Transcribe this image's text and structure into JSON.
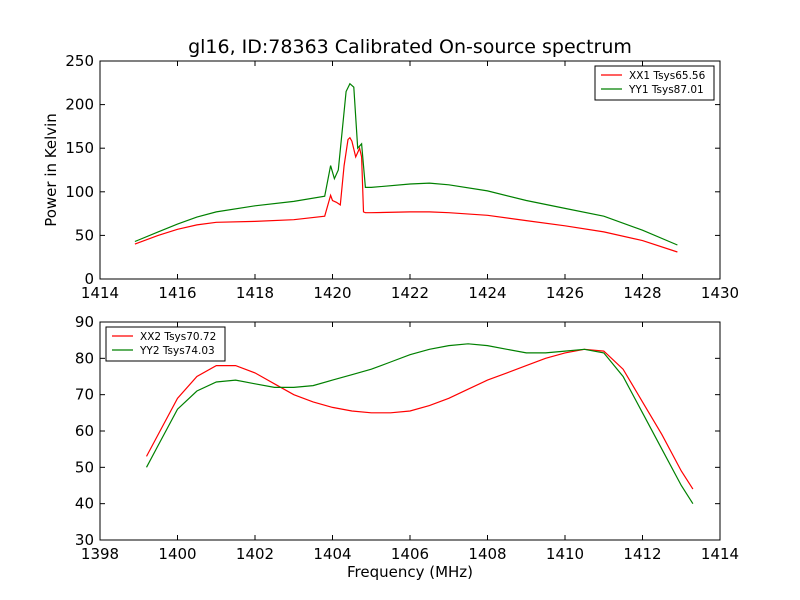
{
  "chart_data": [
    {
      "type": "line",
      "title": "gl16, ID:78363 Calibrated On-source spectrum",
      "xlabel": "",
      "ylabel": "Power in Kelvin",
      "xlim": [
        1414,
        1430
      ],
      "ylim": [
        0,
        250
      ],
      "xticks": [
        1414,
        1416,
        1418,
        1420,
        1422,
        1424,
        1426,
        1428,
        1430
      ],
      "yticks": [
        0,
        50,
        100,
        150,
        200,
        250
      ],
      "grid": false,
      "legend_position": "top-right",
      "series": [
        {
          "name": "XX1 Tsys65.56",
          "color": "#ff0000",
          "x": [
            1414.9,
            1415.5,
            1416,
            1416.5,
            1417,
            1418,
            1419,
            1419.8,
            1419.95,
            1420.0,
            1420.1,
            1420.2,
            1420.3,
            1420.4,
            1420.45,
            1420.5,
            1420.6,
            1420.7,
            1420.75,
            1420.8,
            1420.85,
            1421,
            1422,
            1422.5,
            1423,
            1424,
            1425,
            1426,
            1427,
            1428,
            1428.9
          ],
          "y": [
            40,
            50,
            57,
            62,
            65,
            66,
            68,
            72,
            96,
            90,
            88,
            85,
            130,
            160,
            162,
            158,
            140,
            150,
            140,
            77,
            76,
            76,
            77,
            77,
            76,
            73,
            67,
            61,
            54,
            44,
            31
          ]
        },
        {
          "name": "YY1 Tsys87.01",
          "color": "#008000",
          "x": [
            1414.9,
            1415.5,
            1416,
            1416.5,
            1417,
            1418,
            1419,
            1419.8,
            1419.95,
            1420.05,
            1420.15,
            1420.25,
            1420.35,
            1420.45,
            1420.55,
            1420.65,
            1420.75,
            1420.85,
            1421,
            1422,
            1422.5,
            1423,
            1424,
            1425,
            1426,
            1427,
            1428,
            1428.9
          ],
          "y": [
            43,
            54,
            63,
            71,
            77,
            84,
            89,
            95,
            130,
            115,
            125,
            170,
            215,
            224,
            220,
            150,
            155,
            105,
            105,
            109,
            110,
            108,
            101,
            90,
            81,
            72,
            56,
            39
          ]
        }
      ]
    },
    {
      "type": "line",
      "title": "",
      "xlabel": "Frequency (MHz)",
      "ylabel": "",
      "xlim": [
        1398,
        1414
      ],
      "ylim": [
        30,
        90
      ],
      "xticks": [
        1398,
        1400,
        1402,
        1404,
        1406,
        1408,
        1410,
        1412,
        1414
      ],
      "yticks": [
        30,
        40,
        50,
        60,
        70,
        80,
        90
      ],
      "grid": false,
      "legend_position": "top-left",
      "series": [
        {
          "name": "XX2 Tsys70.72",
          "color": "#ff0000",
          "x": [
            1399.2,
            1399.5,
            1400,
            1400.5,
            1401,
            1401.5,
            1402,
            1402.5,
            1403,
            1403.5,
            1404,
            1404.5,
            1405,
            1405.5,
            1406,
            1406.5,
            1407,
            1407.5,
            1408,
            1408.5,
            1409,
            1409.5,
            1410,
            1410.5,
            1411,
            1411.5,
            1412,
            1412.5,
            1413,
            1413.3
          ],
          "y": [
            53,
            59,
            69,
            75,
            78,
            78,
            76,
            73,
            70,
            68,
            66.5,
            65.5,
            65,
            65,
            65.5,
            67,
            69,
            71.5,
            74,
            76,
            78,
            80,
            81.5,
            82.5,
            82,
            77,
            68,
            59,
            49,
            44
          ]
        },
        {
          "name": "YY2 Tsys74.03",
          "color": "#008000",
          "x": [
            1399.2,
            1399.5,
            1400,
            1400.5,
            1401,
            1401.5,
            1402,
            1402.5,
            1403,
            1403.5,
            1404,
            1404.5,
            1405,
            1405.5,
            1406,
            1406.5,
            1407,
            1407.5,
            1408,
            1408.5,
            1409,
            1409.5,
            1410,
            1410.5,
            1411,
            1411.5,
            1412,
            1412.5,
            1413,
            1413.3
          ],
          "y": [
            50,
            56,
            66,
            71,
            73.5,
            74,
            73,
            72,
            72,
            72.5,
            74,
            75.5,
            77,
            79,
            81,
            82.5,
            83.5,
            84,
            83.5,
            82.5,
            81.5,
            81.5,
            82,
            82.5,
            81.5,
            75,
            65,
            55,
            45,
            40
          ]
        }
      ]
    }
  ]
}
